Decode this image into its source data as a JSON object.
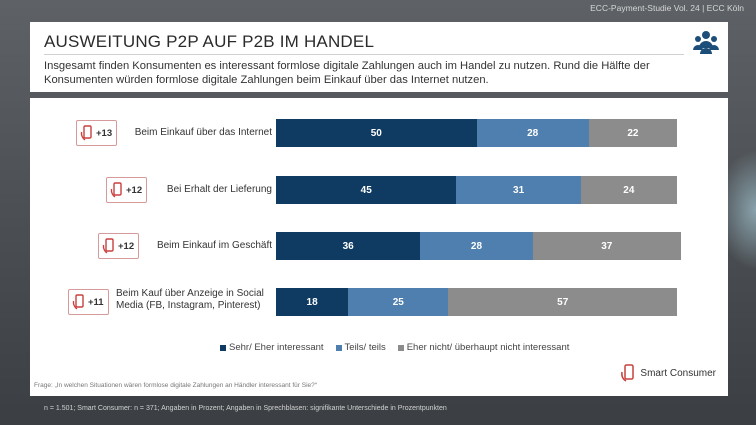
{
  "top_credit": "ECC-Payment-Studie Vol. 24 | ECC Köln",
  "header": {
    "title": "AUSWEITUNG P2P AUF P2B IM HANDEL",
    "subtitle": "Insgesamt finden Konsumenten es interessant formlose digitale Zahlungen auch im Handel zu nutzen. Rund die Hälfte der Konsumenten würden formlose digitale Zahlungen beim Einkauf über das Internet nutzen.",
    "icon": "people-group-icon"
  },
  "chart_data": {
    "type": "bar",
    "orientation": "horizontal",
    "stacked": true,
    "categories": [
      "Beim Einkauf über das Internet",
      "Bei Erhalt der Lieferung",
      "Beim Einkauf im Geschäft",
      "Beim Kauf über Anzeige in Social Media (FB, Instagram, Pinterest)"
    ],
    "badges": [
      "+13",
      "+12",
      "+12",
      "+11"
    ],
    "series": [
      {
        "name": "Sehr/ Eher interessant",
        "color": "#0f3b63",
        "values": [
          50,
          45,
          36,
          18
        ]
      },
      {
        "name": "Teils/ teils",
        "color": "#4f7fae",
        "values": [
          28,
          31,
          28,
          25
        ]
      },
      {
        "name": "Eher nicht/ überhaupt nicht interessant",
        "color": "#8c8c8c",
        "values": [
          22,
          24,
          37,
          57
        ]
      }
    ],
    "xlim": [
      0,
      100
    ],
    "legend_position": "bottom"
  },
  "question_note": "Frage: „In welchen Situationen wären formlose digitale Zahlungen an Händler interessant für Sie?“",
  "logo_text": "Smart Consumer",
  "bottom_note": "n = 1.501; Smart Consumer: n = 371; Angaben in Prozent; Angaben in Sprechblasen: signifikante Unterschiede in Prozentpunkten"
}
